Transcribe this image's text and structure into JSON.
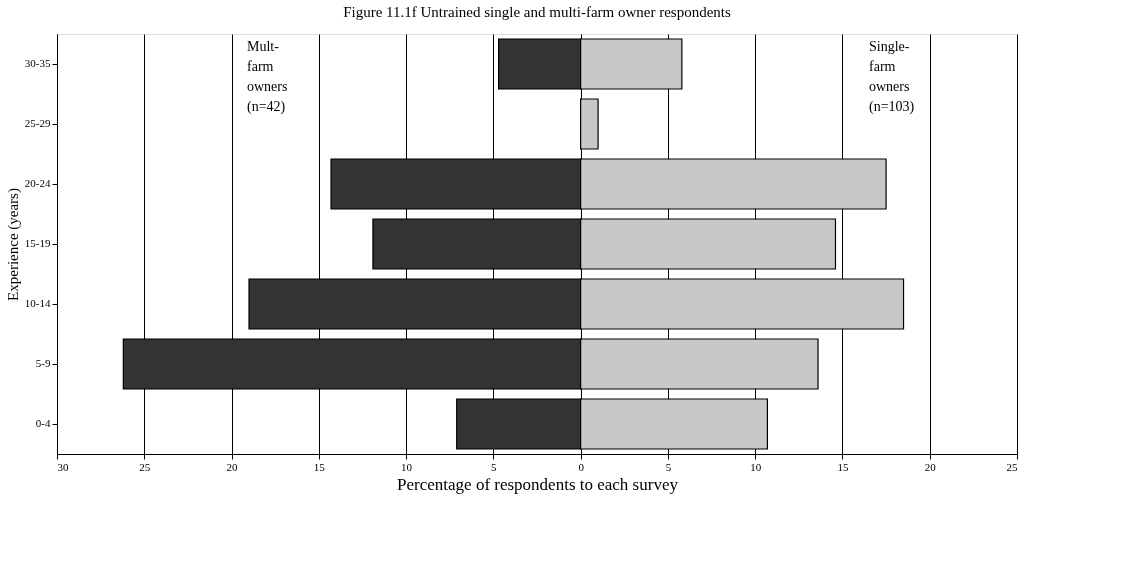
{
  "chart_data": {
    "type": "bar",
    "orientation": "horizontal",
    "title": "Figure 11.1f Untrained single and multi-farm owner respondents",
    "xlabel": "Percentage of respondents to each survey",
    "ylabel": "Experience (years)",
    "categories": [
      "30-35",
      "25-29",
      "20-24",
      "15-19",
      "10-14",
      "5-9",
      "0-4"
    ],
    "series": [
      {
        "color": "#333333",
        "values": [
          -4.7,
          0,
          -14.3,
          -11.9,
          -19.0,
          -26.2,
          -7.1
        ]
      },
      {
        "color": "#c8c8c8",
        "values": [
          5.8,
          1.0,
          17.5,
          14.6,
          18.5,
          13.6,
          10.7
        ]
      }
    ],
    "xlim": [
      -30,
      25
    ],
    "xticks": [
      {
        "value": -30,
        "label": "30"
      },
      {
        "value": -25,
        "label": "25"
      },
      {
        "value": -20,
        "label": "20"
      },
      {
        "value": -15,
        "label": "15"
      },
      {
        "value": -10,
        "label": "10"
      },
      {
        "value": -5,
        "label": "5"
      },
      0,
      5,
      10,
      15,
      20,
      25
    ],
    "grid": "x",
    "stacked": true,
    "annotations": [
      "Mult-\nfarm\nowners\n(n=42)",
      "Single-\nfarm\nowners\n(n=103)"
    ]
  }
}
